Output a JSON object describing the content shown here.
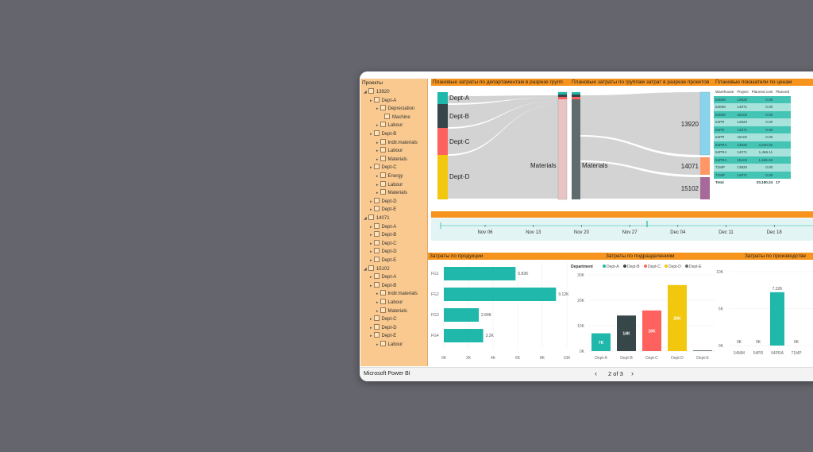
{
  "tree": {
    "title": "Проекты",
    "rows": [
      {
        "label": "13920",
        "level": 0
      },
      {
        "label": "Dept-A",
        "level": 1
      },
      {
        "label": "Depreciation",
        "level": 2
      },
      {
        "label": "Machine",
        "level": 3
      },
      {
        "label": "Labour",
        "level": 2
      },
      {
        "label": "Dept-B",
        "level": 1
      },
      {
        "label": "Indir.materials",
        "level": 2
      },
      {
        "label": "Labour",
        "level": 2
      },
      {
        "label": "Materials",
        "level": 2
      },
      {
        "label": "Dept-C",
        "level": 1
      },
      {
        "label": "Energy",
        "level": 2
      },
      {
        "label": "Labour",
        "level": 2
      },
      {
        "label": "Materials",
        "level": 2
      },
      {
        "label": "Dept-D",
        "level": 1
      },
      {
        "label": "Dept-E",
        "level": 1
      },
      {
        "label": "14071",
        "level": 0
      },
      {
        "label": "Dept-A",
        "level": 1
      },
      {
        "label": "Dept-B",
        "level": 1
      },
      {
        "label": "Dept-C",
        "level": 1
      },
      {
        "label": "Dept-D",
        "level": 1
      },
      {
        "label": "Dept-E",
        "level": 1
      },
      {
        "label": "15102",
        "level": 0
      },
      {
        "label": "Dept-A",
        "level": 1
      },
      {
        "label": "Dept-B",
        "level": 1
      },
      {
        "label": "Indir.materials",
        "level": 2
      },
      {
        "label": "Labour",
        "level": 2
      },
      {
        "label": "Materials",
        "level": 2
      },
      {
        "label": "Dept-C",
        "level": 1
      },
      {
        "label": "Dept-D",
        "level": 1
      },
      {
        "label": "Dept-E",
        "level": 1
      },
      {
        "label": "Labour",
        "level": 2
      }
    ]
  },
  "titles": {
    "sankey1": "Плановые затраты по департаментам в разрезе групп",
    "sankey2": "Плановые затраты по группам затрат в разрезе проектов",
    "table": "Плановые показатели по ценам",
    "products": "Затраты по продукции",
    "departments": "Затраты по подразделениям",
    "production": "Затраты по производстве"
  },
  "sankey1": {
    "sources": [
      "Dept-A",
      "Dept-B",
      "Dept-C",
      "Dept-D"
    ],
    "target": "Materials",
    "colors": [
      "#1fb8aa",
      "#374649",
      "#fd625e",
      "#f2c80f"
    ]
  },
  "sankey2": {
    "source": "Materials",
    "targets": [
      "13920",
      "14071",
      "15102"
    ],
    "target_colors": [
      "#8ad4eb",
      "#fe9666",
      "#a66999"
    ]
  },
  "price_table": {
    "headers": [
      "Warehouse",
      "Project",
      "Planned cost",
      "Planned"
    ],
    "rows": [
      [
        "54MM",
        "13920",
        "0.00",
        ""
      ],
      [
        "54MM",
        "14071",
        "0.00",
        ""
      ],
      [
        "54MM",
        "15102",
        "0.00",
        ""
      ],
      [
        "54PR",
        "13920",
        "0.00",
        ""
      ],
      [
        "54PR",
        "14071",
        "0.00",
        ""
      ],
      [
        "54PR",
        "15102",
        "0.00",
        ""
      ],
      [
        "54PRA",
        "13920",
        "4,340.02",
        ""
      ],
      [
        "54PRA",
        "14071",
        "1,466.11",
        ""
      ],
      [
        "54PRA",
        "15102",
        "1,466.92",
        ""
      ],
      [
        "71MP",
        "13920",
        "0.00",
        ""
      ],
      [
        "71MP",
        "14071",
        "0.00",
        ""
      ]
    ],
    "total_label": "Total",
    "total_value": "20,180.24",
    "total_extra": "17"
  },
  "timeline": {
    "ticks": [
      "Nov 06",
      "Nov 13",
      "Nov 20",
      "Nov 27",
      "Dec 04",
      "Dec 11",
      "Dec 18"
    ]
  },
  "products_chart": {
    "categories": [
      "FG1",
      "FG2",
      "FG3",
      "FG4"
    ],
    "values": [
      5830,
      9120,
      2840,
      3200
    ],
    "labels": [
      "5.83K",
      "9.12K",
      "2.84K",
      "3.2K"
    ],
    "xticks": [
      "0K",
      "2K",
      "4K",
      "6K",
      "8K",
      "10K"
    ],
    "xlim": [
      0,
      10000
    ],
    "color": "#1fb8aa"
  },
  "departments_chart": {
    "legend_title": "Department",
    "categories": [
      "Dept-A",
      "Dept-B",
      "Dept-C",
      "Dept-D",
      "Dept-E"
    ],
    "values": [
      7000,
      14000,
      16000,
      26000,
      300
    ],
    "labels": [
      "7K",
      "14K",
      "16K",
      "26K",
      ""
    ],
    "colors": [
      "#1fb8aa",
      "#374649",
      "#fd625e",
      "#f2c80f",
      "#5f6b6d"
    ],
    "yticks": [
      "0K",
      "10K",
      "20K",
      "30K"
    ],
    "ylim": [
      0,
      30000
    ]
  },
  "production_chart": {
    "categories": [
      "54MM",
      "54PR",
      "54PRA",
      "71MP",
      "7"
    ],
    "values": [
      0,
      0,
      7220,
      0,
      0
    ],
    "labels": [
      "0K",
      "0K",
      "7.22K",
      "0K",
      ""
    ],
    "yticks": [
      "0K",
      "5K",
      "10K"
    ],
    "ylim": [
      0,
      10000
    ],
    "color": "#1fb8aa"
  },
  "footer": {
    "brand": "Microsoft Power BI",
    "page": "2 of 3",
    "prev": "‹",
    "next": "›"
  }
}
